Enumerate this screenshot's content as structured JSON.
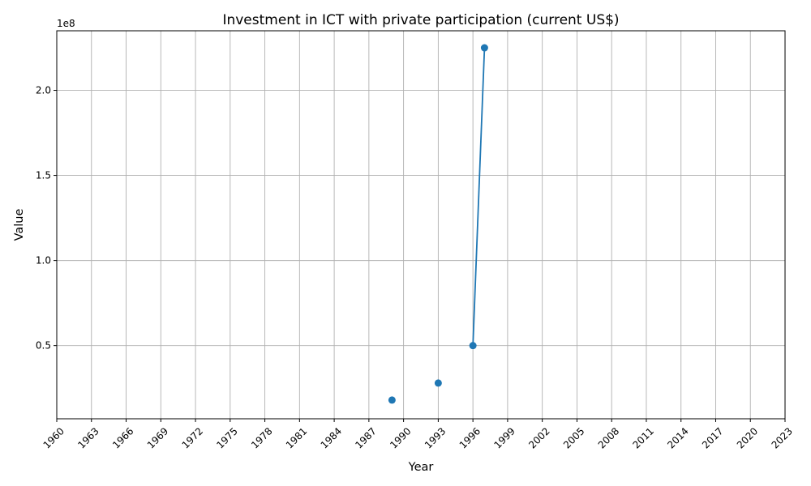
{
  "chart_data": {
    "type": "line",
    "title": "Investment in ICT with private participation (current US$)",
    "xlabel": "Year",
    "ylabel": "Value",
    "y_offset_label": "1e8",
    "xlim": [
      1960,
      2023
    ],
    "ylim": [
      7000000,
      235000000
    ],
    "x_ticks": [
      1960,
      1963,
      1966,
      1969,
      1972,
      1975,
      1978,
      1981,
      1984,
      1987,
      1990,
      1993,
      1996,
      1999,
      2002,
      2005,
      2008,
      2011,
      2014,
      2017,
      2020,
      2023
    ],
    "y_ticks": [
      {
        "value": 50000000,
        "label": "0.5"
      },
      {
        "value": 100000000,
        "label": "1.0"
      },
      {
        "value": 150000000,
        "label": "1.5"
      },
      {
        "value": 200000000,
        "label": "2.0"
      }
    ],
    "grid": true,
    "series": [
      {
        "color": "#1f77b4",
        "points": [
          {
            "x": 1989,
            "y": 18000000
          },
          {
            "x": 1993,
            "y": 28000000
          },
          {
            "x": 1996,
            "y": 50000000
          },
          {
            "x": 1997,
            "y": 225000000
          }
        ]
      }
    ]
  }
}
